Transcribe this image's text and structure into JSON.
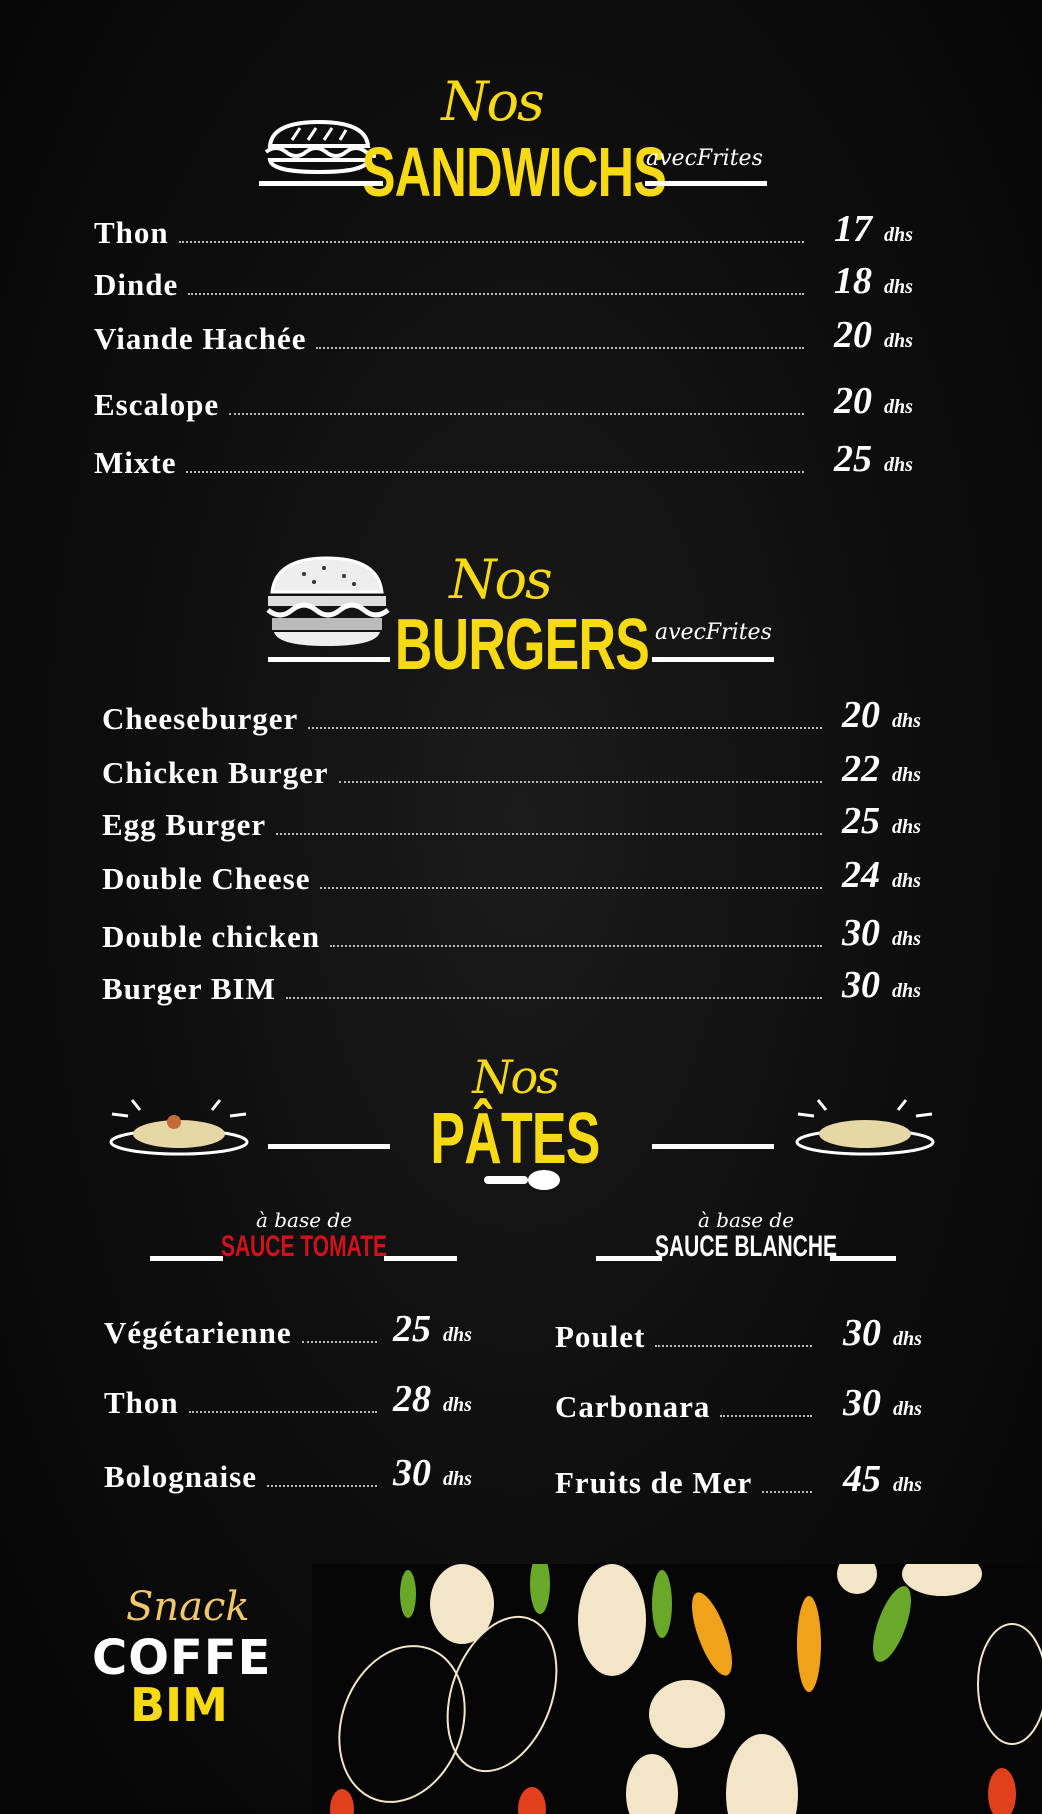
{
  "colors": {
    "accent": "#f7d914",
    "tomato": "#d0121b",
    "background": "#000000"
  },
  "sandwichs": {
    "nos": "Nos",
    "title": "SANDWICHS",
    "suffix": "avecFrites",
    "icon": "sandwich-icon",
    "items": [
      {
        "name": "Thon",
        "price": "17",
        "unit": "dhs"
      },
      {
        "name": "Dinde",
        "price": "18",
        "unit": "dhs"
      },
      {
        "name": "Viande Hachée",
        "price": "20",
        "unit": "dhs"
      },
      {
        "name": "Escalope",
        "price": "20",
        "unit": "dhs"
      },
      {
        "name": "Mixte",
        "price": "25",
        "unit": "dhs"
      }
    ]
  },
  "burgers": {
    "nos": "Nos",
    "title": "BURGERS",
    "suffix": "avecFrites",
    "icon": "burger-icon",
    "items": [
      {
        "name": "Cheeseburger",
        "price": "20",
        "unit": "dhs"
      },
      {
        "name": "Chicken Burger",
        "price": "22",
        "unit": "dhs"
      },
      {
        "name": "Egg Burger",
        "price": "25",
        "unit": "dhs"
      },
      {
        "name": "Double  Cheese",
        "price": "24",
        "unit": "dhs"
      },
      {
        "name": "Double chicken",
        "price": "30",
        "unit": "dhs"
      },
      {
        "name": "Burger BIM",
        "price": "30",
        "unit": "dhs"
      }
    ]
  },
  "pates": {
    "nos": "Nos",
    "title": "PÂTES",
    "icon": "pasta-plate-icon",
    "tomate": {
      "prefix": "à base de",
      "title": "SAUCE TOMATE",
      "items": [
        {
          "name": "Végétarienne",
          "price": "25",
          "unit": "dhs"
        },
        {
          "name": "Thon",
          "price": "28",
          "unit": "dhs"
        },
        {
          "name": "Bolognaise",
          "price": "30",
          "unit": "dhs"
        }
      ]
    },
    "blanche": {
      "prefix": "à base de",
      "title": "SAUCE BLANCHE",
      "items": [
        {
          "name": "Poulet",
          "price": "30",
          "unit": "dhs"
        },
        {
          "name": "Carbonara",
          "price": "30",
          "unit": "dhs"
        },
        {
          "name": "Fruits de Mer",
          "price": "45",
          "unit": "dhs"
        }
      ]
    }
  },
  "logo": {
    "line1": "Snack",
    "line2": "COFFE",
    "line3": "BIM"
  }
}
